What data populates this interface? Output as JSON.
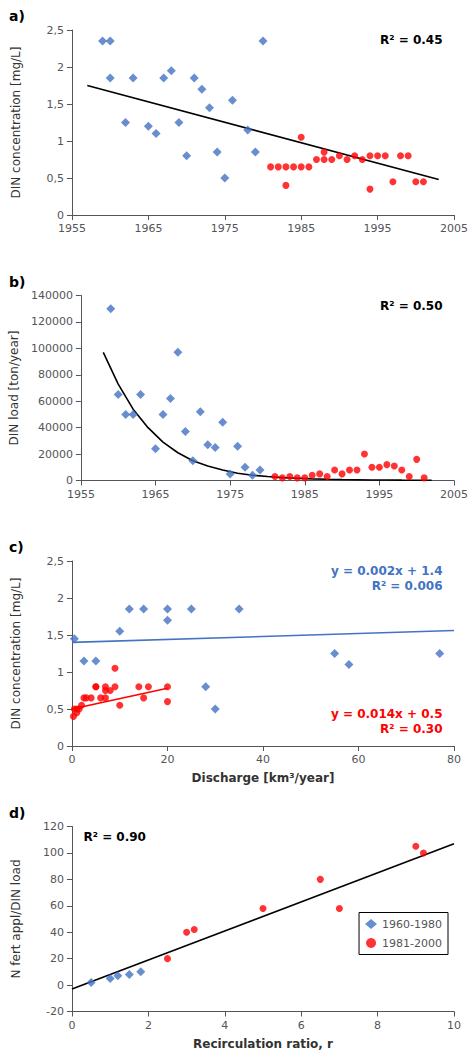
{
  "chart_data": [
    {
      "type": "scatter",
      "title": "a)",
      "ylabel": "DIN concentration [mg/L]",
      "xlim": [
        1955,
        2005
      ],
      "xticks": [
        1955,
        1965,
        1975,
        1985,
        1995,
        2005
      ],
      "ylim": [
        0,
        2.5
      ],
      "yticks": [
        0,
        {
          "value": 0.5,
          "label": "0,5"
        },
        1,
        {
          "value": 1.5,
          "label": "1,5"
        },
        2,
        {
          "value": 2.5,
          "label": "2,5"
        }
      ],
      "grid": false,
      "annotations": [
        {
          "text": "R² = 0.45"
        }
      ],
      "series": [
        {
          "type": "scatter",
          "marker": "diamond",
          "color": "#4472C4",
          "x": [
            1959,
            1960,
            1960,
            1962,
            1963,
            1965,
            1966,
            1967,
            1968,
            1969,
            1970,
            1971,
            1972,
            1973,
            1974,
            1975,
            1976,
            1978,
            1979,
            1980
          ],
          "values": [
            2.35,
            1.85,
            2.35,
            1.25,
            1.85,
            1.2,
            1.1,
            1.85,
            1.95,
            1.25,
            0.8,
            1.85,
            1.7,
            1.45,
            0.85,
            0.5,
            1.55,
            1.15,
            0.85,
            2.35
          ]
        },
        {
          "type": "scatter",
          "marker": "circle",
          "color": "#FF0000",
          "x": [
            1981,
            1982,
            1983,
            1983,
            1984,
            1985,
            1985,
            1986,
            1987,
            1988,
            1988,
            1989,
            1990,
            1991,
            1992,
            1993,
            1994,
            1994,
            1995,
            1996,
            1997,
            1998,
            1999,
            2000,
            2001
          ],
          "values": [
            0.65,
            0.65,
            0.4,
            0.65,
            0.65,
            0.65,
            1.05,
            0.65,
            0.75,
            0.75,
            0.85,
            0.75,
            0.8,
            0.75,
            0.8,
            0.75,
            0.35,
            0.8,
            0.8,
            0.8,
            0.45,
            0.8,
            0.8,
            0.45,
            0.45
          ]
        },
        {
          "type": "line",
          "color": "#000000",
          "x": [
            1957,
            2003
          ],
          "values": [
            1.75,
            0.48
          ]
        }
      ]
    },
    {
      "type": "scatter",
      "title": "b)",
      "ylabel": "DIN load [ton/year]",
      "xlim": [
        1955,
        2005
      ],
      "xticks": [
        1955,
        1965,
        1975,
        1985,
        1995,
        2005
      ],
      "ylim": [
        0,
        140000
      ],
      "yticks": [
        0,
        20000,
        40000,
        60000,
        80000,
        100000,
        120000,
        140000
      ],
      "grid": false,
      "annotations": [
        {
          "text": "R² = 0.50"
        }
      ],
      "series": [
        {
          "type": "scatter",
          "marker": "diamond",
          "color": "#4472C4",
          "x": [
            1959,
            1960,
            1961,
            1962,
            1963,
            1965,
            1966,
            1967,
            1968,
            1969,
            1970,
            1971,
            1972,
            1973,
            1974,
            1975,
            1976,
            1977,
            1978,
            1979
          ],
          "values": [
            130000,
            65000,
            50000,
            50000,
            65000,
            24000,
            50000,
            62000,
            97000,
            37000,
            15000,
            52000,
            27000,
            25000,
            44000,
            5000,
            26000,
            10000,
            4000,
            8000
          ]
        },
        {
          "type": "scatter",
          "marker": "circle",
          "color": "#FF0000",
          "x": [
            1981,
            1982,
            1983,
            1984,
            1985,
            1986,
            1987,
            1988,
            1989,
            1990,
            1991,
            1992,
            1993,
            1994,
            1995,
            1996,
            1997,
            1998,
            1999,
            2000,
            2001
          ],
          "values": [
            3000,
            2000,
            3000,
            2000,
            2000,
            4000,
            5000,
            3000,
            8000,
            5000,
            8000,
            8000,
            20000,
            10000,
            10000,
            12000,
            11000,
            8000,
            3000,
            16000,
            2000
          ]
        },
        {
          "type": "line",
          "color": "#000000",
          "x": [
            1958,
            1960,
            1962,
            1964,
            1966,
            1968,
            1970,
            1972,
            1974,
            1976,
            1978,
            1980,
            1982,
            1984,
            1986,
            1988,
            1990,
            1992,
            1994,
            1996,
            1998,
            2000,
            2002
          ],
          "values": [
            97000,
            73000,
            54000,
            40000,
            29000,
            21000,
            15000,
            11000,
            8000,
            5500,
            4000,
            3000,
            2200,
            1700,
            1200,
            900,
            700,
            550,
            430,
            340,
            270,
            210,
            170
          ]
        }
      ]
    },
    {
      "type": "scatter",
      "title": "c)",
      "ylabel": "DIN concentration [mg/L]",
      "xlabel": "Discharge [km³/year]",
      "xlim": [
        0,
        80
      ],
      "xticks": [
        0,
        20,
        40,
        60,
        80
      ],
      "ylim": [
        0,
        2.5
      ],
      "yticks": [
        0,
        {
          "value": 0.5,
          "label": "0,5"
        },
        1,
        {
          "value": 1.5,
          "label": "1,5"
        },
        2,
        {
          "value": 2.5,
          "label": "2,5"
        }
      ],
      "grid": false,
      "annotations": [
        {
          "text": "y = 0.002x + 1.4",
          "color": "#4472C4"
        },
        {
          "text": "R² = 0.006",
          "color": "#4472C4"
        },
        {
          "text": "y = 0.014x + 0.5",
          "color": "#FF0000"
        },
        {
          "text": "R² = 0.30",
          "color": "#FF0000"
        }
      ],
      "series": [
        {
          "type": "scatter",
          "marker": "diamond",
          "color": "#4472C4",
          "x": [
            0.5,
            2.5,
            5,
            10,
            12,
            15,
            20,
            20,
            25,
            28,
            30,
            35,
            55,
            58,
            77
          ],
          "values": [
            1.45,
            1.15,
            1.15,
            1.55,
            1.85,
            1.85,
            1.85,
            1.7,
            1.85,
            0.8,
            0.5,
            1.85,
            1.25,
            1.1,
            1.25
          ]
        },
        {
          "type": "scatter",
          "marker": "circle",
          "color": "#FF0000",
          "x": [
            0.3,
            0.5,
            1,
            1,
            1.5,
            2,
            2.5,
            3,
            4,
            5,
            5,
            6,
            7,
            7,
            7,
            8,
            9,
            9,
            10,
            14,
            15,
            16,
            20,
            20
          ],
          "values": [
            0.4,
            0.5,
            0.5,
            0.45,
            0.5,
            0.55,
            0.65,
            0.65,
            0.65,
            0.8,
            0.8,
            0.65,
            0.8,
            0.65,
            0.75,
            0.75,
            1.05,
            0.8,
            0.55,
            0.8,
            0.65,
            0.8,
            0.6,
            0.8
          ]
        },
        {
          "type": "line",
          "color": "#4472C4",
          "x": [
            0,
            80
          ],
          "values": [
            1.4,
            1.56
          ]
        },
        {
          "type": "line",
          "color": "#FF0000",
          "x": [
            0,
            20
          ],
          "values": [
            0.5,
            0.78
          ]
        }
      ]
    },
    {
      "type": "scatter",
      "title": "d)",
      "ylabel": "N fert appl/DIN load",
      "xlabel": "Recirculation ratio, r",
      "xlim": [
        0,
        10
      ],
      "xticks": [
        0,
        2,
        4,
        6,
        8,
        10
      ],
      "ylim": [
        -20,
        120
      ],
      "yticks": [
        -20,
        0,
        20,
        40,
        60,
        80,
        100,
        120
      ],
      "grid": false,
      "legend": "right",
      "annotations": [
        {
          "text": "R² = 0.90"
        }
      ],
      "series": [
        {
          "type": "scatter",
          "name": "1960-1980",
          "marker": "diamond",
          "color": "#4472C4",
          "x": [
            0.5,
            1.0,
            1.2,
            1.5,
            1.8
          ],
          "values": [
            2,
            5,
            7,
            8,
            10
          ]
        },
        {
          "type": "scatter",
          "name": "1981-2000",
          "marker": "circle",
          "color": "#FF0000",
          "x": [
            2.5,
            3.0,
            3.2,
            5.0,
            6.5,
            7.0,
            9.0,
            9.2
          ],
          "values": [
            20,
            40,
            42,
            58,
            80,
            58,
            105,
            100
          ]
        },
        {
          "type": "line",
          "color": "#000000",
          "x": [
            0,
            10
          ],
          "values": [
            -3,
            107
          ]
        }
      ]
    }
  ]
}
